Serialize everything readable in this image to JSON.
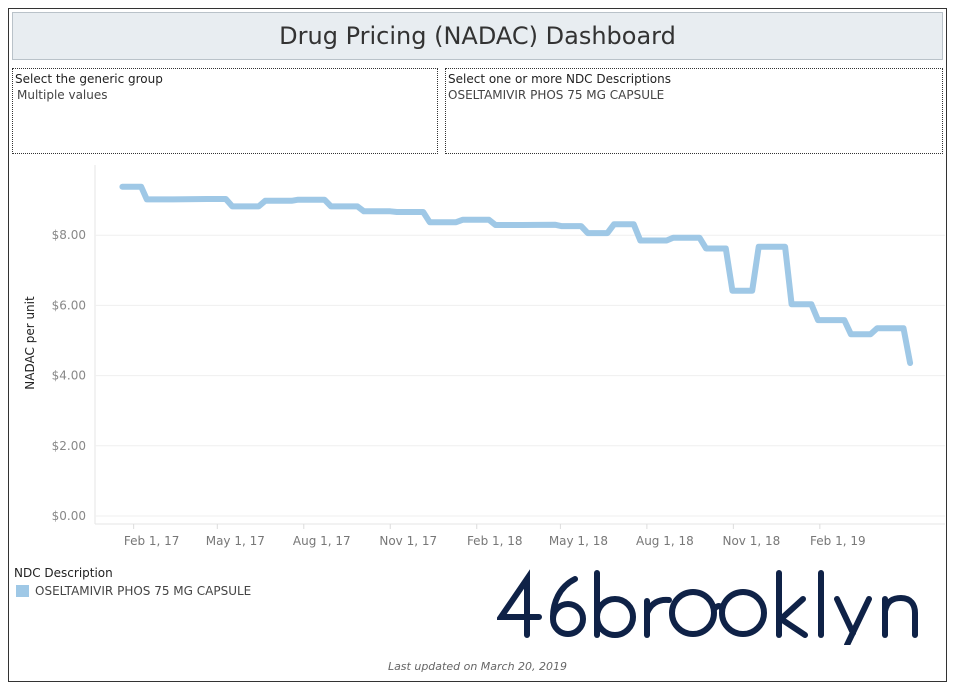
{
  "dashboard": {
    "title": "Drug Pricing (NADAC) Dashboard",
    "filters": [
      {
        "label": "Select the generic group",
        "value": "Multiple values"
      },
      {
        "label": "Select one or more NDC Descriptions",
        "value": "OSELTAMIVIR PHOS 75 MG CAPSULE"
      }
    ],
    "legend": {
      "title": "NDC Description",
      "items": [
        {
          "label": "OSELTAMIVIR PHOS 75 MG CAPSULE",
          "color": "#9fc8e6"
        }
      ]
    },
    "logo_text": "46brooklyn",
    "footer": "Last updated on March 20, 2019"
  },
  "chart_data": {
    "type": "line",
    "title": "",
    "xlabel": "",
    "ylabel": "NADAC per unit",
    "ylim": [
      0,
      9.9
    ],
    "yticks": [
      0,
      2,
      4,
      6,
      8
    ],
    "ytick_labels": [
      "$0.00",
      "$2.00",
      "$4.00",
      "$6.00",
      "$8.00"
    ],
    "xlim": [
      "2017-01-01",
      "2019-05-01"
    ],
    "xticks": [
      "2017-02-01",
      "2017-05-01",
      "2017-08-01",
      "2017-11-01",
      "2018-02-01",
      "2018-05-01",
      "2018-08-01",
      "2018-11-01",
      "2019-02-01"
    ],
    "xtick_labels": [
      "Feb 1, 17",
      "May 1, 17",
      "Aug 1, 17",
      "Nov 1, 17",
      "Feb 1, 18",
      "May 1, 18",
      "Aug 1, 18",
      "Nov 1, 18",
      "Feb 1, 19"
    ],
    "grid": true,
    "legend_position": "bottom-left",
    "series": [
      {
        "name": "OSELTAMIVIR PHOS 75 MG CAPSULE",
        "color": "#9fc8e6",
        "points": [
          [
            "2017-01-20",
            9.38
          ],
          [
            "2017-02-09",
            9.38
          ],
          [
            "2017-02-15",
            9.02
          ],
          [
            "2017-03-15",
            9.02
          ],
          [
            "2017-04-20",
            9.03
          ],
          [
            "2017-05-10",
            9.03
          ],
          [
            "2017-05-17",
            8.82
          ],
          [
            "2017-06-14",
            8.82
          ],
          [
            "2017-06-21",
            8.98
          ],
          [
            "2017-07-19",
            8.98
          ],
          [
            "2017-07-26",
            9.01
          ],
          [
            "2017-08-23",
            9.01
          ],
          [
            "2017-08-30",
            8.82
          ],
          [
            "2017-09-27",
            8.82
          ],
          [
            "2017-10-04",
            8.68
          ],
          [
            "2017-11-01",
            8.68
          ],
          [
            "2017-11-08",
            8.66
          ],
          [
            "2017-12-06",
            8.66
          ],
          [
            "2017-12-13",
            8.37
          ],
          [
            "2018-01-10",
            8.37
          ],
          [
            "2018-01-17",
            8.44
          ],
          [
            "2018-02-14",
            8.44
          ],
          [
            "2018-02-21",
            8.29
          ],
          [
            "2018-03-21",
            8.29
          ],
          [
            "2018-04-25",
            8.3
          ],
          [
            "2018-05-02",
            8.26
          ],
          [
            "2018-05-23",
            8.26
          ],
          [
            "2018-05-30",
            8.06
          ],
          [
            "2018-06-20",
            8.06
          ],
          [
            "2018-06-27",
            8.31
          ],
          [
            "2018-07-18",
            8.31
          ],
          [
            "2018-07-25",
            7.85
          ],
          [
            "2018-08-22",
            7.85
          ],
          [
            "2018-08-29",
            7.93
          ],
          [
            "2018-09-26",
            7.93
          ],
          [
            "2018-10-03",
            7.62
          ],
          [
            "2018-10-24",
            7.62
          ],
          [
            "2018-10-31",
            6.42
          ],
          [
            "2018-11-21",
            6.42
          ],
          [
            "2018-11-28",
            7.67
          ],
          [
            "2018-12-26",
            7.67
          ],
          [
            "2019-01-02",
            6.03
          ],
          [
            "2019-01-23",
            6.03
          ],
          [
            "2019-01-30",
            5.58
          ],
          [
            "2019-02-27",
            5.58
          ],
          [
            "2019-03-06",
            5.18
          ],
          [
            "2019-03-27",
            5.18
          ],
          [
            "2019-04-03",
            5.35
          ],
          [
            "2019-05-01",
            5.35
          ],
          [
            "2019-05-08",
            4.36
          ]
        ]
      }
    ]
  }
}
